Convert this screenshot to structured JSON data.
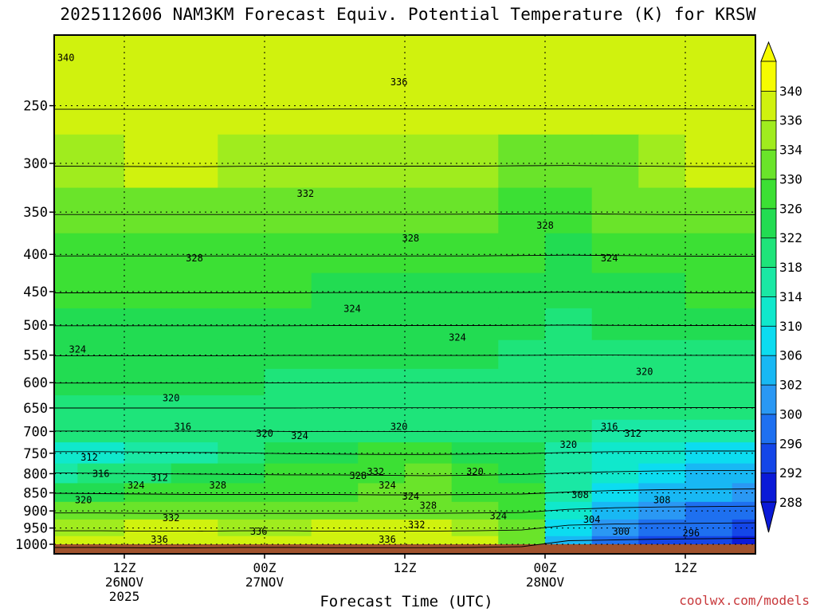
{
  "chart_data": {
    "type": "heatmap",
    "title": "2025112606 NAM3KM Forecast Equiv. Potential Temperature (K) for KRSW",
    "xlabel": "Forecast Time (UTC)",
    "ylabel": "",
    "credit": "coolwx.com/models",
    "y_scale": "log",
    "y_ticks": [
      250,
      300,
      350,
      400,
      450,
      500,
      550,
      600,
      650,
      700,
      750,
      800,
      850,
      900,
      950,
      1000
    ],
    "y_range": [
      1000,
      200
    ],
    "x_range_hours": [
      0,
      60
    ],
    "x_ticks": [
      {
        "hour": 6,
        "lines": [
          "12Z",
          "26NOV",
          "2025"
        ]
      },
      {
        "hour": 18,
        "lines": [
          "00Z",
          "27NOV"
        ]
      },
      {
        "hour": 30,
        "lines": [
          "12Z"
        ]
      },
      {
        "hour": 42,
        "lines": [
          "00Z",
          "28NOV"
        ]
      },
      {
        "hour": 54,
        "lines": [
          "12Z"
        ]
      }
    ],
    "colorbar": {
      "levels": [
        288,
        292,
        296,
        300,
        302,
        306,
        310,
        314,
        318,
        322,
        326,
        330,
        334,
        336,
        340
      ],
      "labels": [
        "288",
        "292",
        "296",
        "300",
        "302",
        "306",
        "310",
        "314",
        "318",
        "322",
        "326",
        "330",
        "334",
        "336",
        "340"
      ],
      "colors": [
        "#0a1ad8",
        "#1446e8",
        "#1e70f0",
        "#2a98f4",
        "#18b8f4",
        "#0cdcf0",
        "#10e8cc",
        "#1ae8a4",
        "#1ee47a",
        "#22dc52",
        "#3ce034",
        "#6ae42a",
        "#a0ec1e",
        "#d0f20e",
        "#f6fc00"
      ]
    },
    "series": [
      {
        "pressure": 250,
        "theta_e": [
          338,
          338,
          338,
          338,
          338,
          338,
          337,
          337,
          337,
          337,
          337,
          337,
          337,
          337,
          337,
          338
        ]
      },
      {
        "pressure": 300,
        "theta_e": [
          334,
          335,
          336,
          337,
          335,
          334,
          334,
          334,
          334,
          334,
          332,
          331,
          333,
          335,
          336,
          336
        ]
      },
      {
        "pressure": 350,
        "theta_e": [
          332,
          332,
          332,
          332,
          332,
          332,
          332,
          331,
          331,
          330,
          329,
          328,
          330,
          332,
          333,
          333
        ]
      },
      {
        "pressure": 400,
        "theta_e": [
          328,
          328,
          328,
          328,
          328,
          328,
          328,
          328,
          328,
          328,
          326,
          324,
          326,
          328,
          329,
          329
        ]
      },
      {
        "pressure": 450,
        "theta_e": [
          326,
          326,
          326,
          326,
          326,
          326,
          325,
          325,
          325,
          325,
          324,
          323,
          324,
          325,
          326,
          326
        ]
      },
      {
        "pressure": 500,
        "theta_e": [
          324,
          324,
          324,
          324,
          324,
          324,
          323,
          323,
          323,
          323,
          322,
          321,
          322,
          323,
          323,
          323
        ]
      },
      {
        "pressure": 550,
        "theta_e": [
          323,
          323,
          323,
          323,
          323,
          322,
          322,
          322,
          322,
          322,
          321,
          320,
          320,
          321,
          321,
          321
        ]
      },
      {
        "pressure": 600,
        "theta_e": [
          322,
          322,
          322,
          322,
          322,
          321,
          321,
          320,
          320,
          320,
          320,
          320,
          320,
          320,
          320,
          320
        ]
      },
      {
        "pressure": 650,
        "theta_e": [
          320,
          320,
          320,
          320,
          320,
          320,
          319,
          319,
          319,
          319,
          319,
          318,
          318,
          318,
          318,
          318
        ]
      },
      {
        "pressure": 700,
        "theta_e": [
          318,
          318,
          318,
          318,
          318,
          320,
          320,
          320,
          320,
          320,
          320,
          318,
          316,
          316,
          316,
          316
        ]
      },
      {
        "pressure": 750,
        "theta_e": [
          312,
          312,
          314,
          316,
          318,
          322,
          324,
          326,
          326,
          324,
          322,
          316,
          312,
          310,
          309,
          309
        ]
      },
      {
        "pressure": 800,
        "theta_e": [
          316,
          318,
          320,
          322,
          324,
          326,
          326,
          328,
          330,
          328,
          324,
          316,
          310,
          306,
          304,
          304
        ]
      },
      {
        "pressure": 850,
        "theta_e": [
          322,
          324,
          326,
          328,
          328,
          328,
          328,
          330,
          330,
          328,
          326,
          316,
          308,
          304,
          302,
          300
        ]
      },
      {
        "pressure": 900,
        "theta_e": [
          330,
          330,
          332,
          332,
          332,
          332,
          332,
          332,
          332,
          330,
          328,
          312,
          304,
          300,
          298,
          296
        ]
      },
      {
        "pressure": 950,
        "theta_e": [
          334,
          334,
          336,
          336,
          334,
          334,
          336,
          336,
          336,
          334,
          330,
          306,
          300,
          297,
          296,
          294
        ]
      },
      {
        "pressure": 1000,
        "theta_e": [
          336,
          336,
          338,
          338,
          336,
          336,
          337,
          337,
          337,
          336,
          332,
          302,
          298,
          294,
          292,
          290
        ]
      }
    ],
    "series_hours": [
      0,
      4,
      8,
      12,
      16,
      20,
      24,
      28,
      32,
      36,
      40,
      44,
      48,
      52,
      56,
      60
    ],
    "contour_labels": [
      {
        "text": "340",
        "hour": 1.0,
        "pressure": 215
      },
      {
        "text": "336",
        "hour": 29.5,
        "pressure": 232
      },
      {
        "text": "332",
        "hour": 21.5,
        "pressure": 330
      },
      {
        "text": "328",
        "hour": 12.0,
        "pressure": 405
      },
      {
        "text": "328",
        "hour": 30.5,
        "pressure": 380
      },
      {
        "text": "328",
        "hour": 42.0,
        "pressure": 365
      },
      {
        "text": "324",
        "hour": 47.5,
        "pressure": 405
      },
      {
        "text": "324",
        "hour": 25.5,
        "pressure": 475
      },
      {
        "text": "324",
        "hour": 34.5,
        "pressure": 520
      },
      {
        "text": "324",
        "hour": 2.0,
        "pressure": 540
      },
      {
        "text": "320",
        "hour": 50.5,
        "pressure": 580
      },
      {
        "text": "320",
        "hour": 10.0,
        "pressure": 630
      },
      {
        "text": "316",
        "hour": 11.0,
        "pressure": 690
      },
      {
        "text": "320",
        "hour": 18.0,
        "pressure": 705
      },
      {
        "text": "324",
        "hour": 21.0,
        "pressure": 710
      },
      {
        "text": "320",
        "hour": 29.5,
        "pressure": 690
      },
      {
        "text": "316",
        "hour": 47.5,
        "pressure": 690
      },
      {
        "text": "312",
        "hour": 49.5,
        "pressure": 705
      },
      {
        "text": "320",
        "hour": 44.0,
        "pressure": 730
      },
      {
        "text": "312",
        "hour": 3.0,
        "pressure": 760
      },
      {
        "text": "316",
        "hour": 4.0,
        "pressure": 800
      },
      {
        "text": "324",
        "hour": 7.0,
        "pressure": 830
      },
      {
        "text": "312",
        "hour": 9.0,
        "pressure": 810
      },
      {
        "text": "328",
        "hour": 14.0,
        "pressure": 830
      },
      {
        "text": "328",
        "hour": 26.0,
        "pressure": 805
      },
      {
        "text": "332",
        "hour": 27.5,
        "pressure": 795
      },
      {
        "text": "324",
        "hour": 28.5,
        "pressure": 830
      },
      {
        "text": "324",
        "hour": 30.5,
        "pressure": 860
      },
      {
        "text": "328",
        "hour": 32.0,
        "pressure": 885
      },
      {
        "text": "320",
        "hour": 36.0,
        "pressure": 795
      },
      {
        "text": "324",
        "hour": 38.0,
        "pressure": 915
      },
      {
        "text": "308",
        "hour": 45.0,
        "pressure": 855
      },
      {
        "text": "308",
        "hour": 52.0,
        "pressure": 870
      },
      {
        "text": "304",
        "hour": 46.0,
        "pressure": 925
      },
      {
        "text": "300",
        "hour": 48.5,
        "pressure": 960
      },
      {
        "text": "296",
        "hour": 54.5,
        "pressure": 965
      },
      {
        "text": "320",
        "hour": 2.5,
        "pressure": 870
      },
      {
        "text": "332",
        "hour": 10.0,
        "pressure": 920
      },
      {
        "text": "336",
        "hour": 9.0,
        "pressure": 985
      },
      {
        "text": "336",
        "hour": 17.5,
        "pressure": 960
      },
      {
        "text": "332",
        "hour": 31.0,
        "pressure": 940
      },
      {
        "text": "336",
        "hour": 28.5,
        "pressure": 985
      }
    ]
  }
}
